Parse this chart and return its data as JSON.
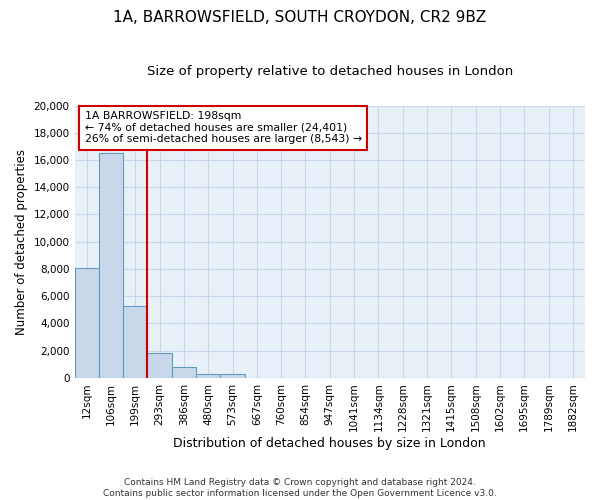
{
  "title": "1A, BARROWSFIELD, SOUTH CROYDON, CR2 9BZ",
  "subtitle": "Size of property relative to detached houses in London",
  "xlabel": "Distribution of detached houses by size in London",
  "ylabel": "Number of detached properties",
  "footer_line1": "Contains HM Land Registry data © Crown copyright and database right 2024.",
  "footer_line2": "Contains public sector information licensed under the Open Government Licence v3.0.",
  "bar_labels": [
    "12sqm",
    "106sqm",
    "199sqm",
    "293sqm",
    "386sqm",
    "480sqm",
    "573sqm",
    "667sqm",
    "760sqm",
    "854sqm",
    "947sqm",
    "1041sqm",
    "1134sqm",
    "1228sqm",
    "1321sqm",
    "1415sqm",
    "1508sqm",
    "1602sqm",
    "1695sqm",
    "1789sqm",
    "1882sqm"
  ],
  "bar_values": [
    8100,
    16500,
    5300,
    1850,
    800,
    300,
    250,
    0,
    0,
    0,
    0,
    0,
    0,
    0,
    0,
    0,
    0,
    0,
    0,
    0,
    0
  ],
  "bar_color": "#c8d8ea",
  "bar_edge_color": "#6699bb",
  "property_line_x": 2.5,
  "property_line_color": "#cc0000",
  "annotation_text": "1A BARROWSFIELD: 198sqm\n← 74% of detached houses are smaller (24,401)\n26% of semi-detached houses are larger (8,543) →",
  "annotation_box_edge_color": "#cc0000",
  "annotation_bg_color": "#ffffff",
  "ylim": [
    0,
    20000
  ],
  "yticks": [
    0,
    2000,
    4000,
    6000,
    8000,
    10000,
    12000,
    14000,
    16000,
    18000,
    20000
  ],
  "grid_color": "#c8d8ea",
  "background_color": "#e8f0f8",
  "title_fontsize": 11,
  "subtitle_fontsize": 9.5,
  "xlabel_fontsize": 9,
  "ylabel_fontsize": 8.5,
  "tick_fontsize": 7.5,
  "footer_fontsize": 6.5
}
